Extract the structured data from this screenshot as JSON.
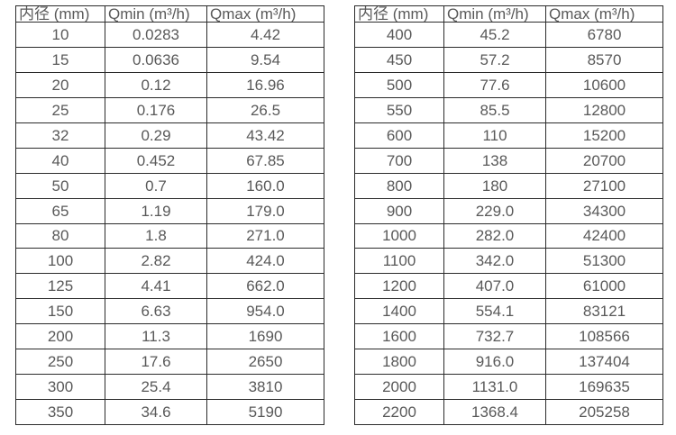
{
  "colors": {
    "background": "#ffffff",
    "text": "#595959",
    "border": "#2b2b2b"
  },
  "tables": [
    {
      "headers": [
        "内径 (mm)",
        "Qmin (m³/h)",
        "Qmax (m³/h)"
      ],
      "rows": [
        [
          "10",
          "0.0283",
          "4.42"
        ],
        [
          "15",
          "0.0636",
          "9.54"
        ],
        [
          "20",
          "0.12",
          "16.96"
        ],
        [
          "25",
          "0.176",
          "26.5"
        ],
        [
          "32",
          "0.29",
          "43.42"
        ],
        [
          "40",
          "0.452",
          "67.85"
        ],
        [
          "50",
          "0.7",
          "160.0"
        ],
        [
          "65",
          "1.19",
          "179.0"
        ],
        [
          "80",
          "1.8",
          "271.0"
        ],
        [
          "100",
          "2.82",
          "424.0"
        ],
        [
          "125",
          "4.41",
          "662.0"
        ],
        [
          "150",
          "6.63",
          "954.0"
        ],
        [
          "200",
          "11.3",
          "1690"
        ],
        [
          "250",
          "17.6",
          "2650"
        ],
        [
          "300",
          "25.4",
          "3810"
        ],
        [
          "350",
          "34.6",
          "5190"
        ]
      ]
    },
    {
      "headers": [
        "内径 (mm)",
        "Qmin (m³/h)",
        "Qmax (m³/h)"
      ],
      "rows": [
        [
          "400",
          "45.2",
          "6780"
        ],
        [
          "450",
          "57.2",
          "8570"
        ],
        [
          "500",
          "77.6",
          "10600"
        ],
        [
          "550",
          "85.5",
          "12800"
        ],
        [
          "600",
          "110",
          "15200"
        ],
        [
          "700",
          "138",
          "20700"
        ],
        [
          "800",
          "180",
          "27100"
        ],
        [
          "900",
          "229.0",
          "34300"
        ],
        [
          "1000",
          "282.0",
          "42400"
        ],
        [
          "1100",
          "342.0",
          "51300"
        ],
        [
          "1200",
          "407.0",
          "61000"
        ],
        [
          "1400",
          "554.1",
          "83121"
        ],
        [
          "1600",
          "732.7",
          "108566"
        ],
        [
          "1800",
          "916.0",
          "137404"
        ],
        [
          "2000",
          "1131.0",
          "169635"
        ],
        [
          "2200",
          "1368.4",
          "205258"
        ]
      ]
    }
  ]
}
